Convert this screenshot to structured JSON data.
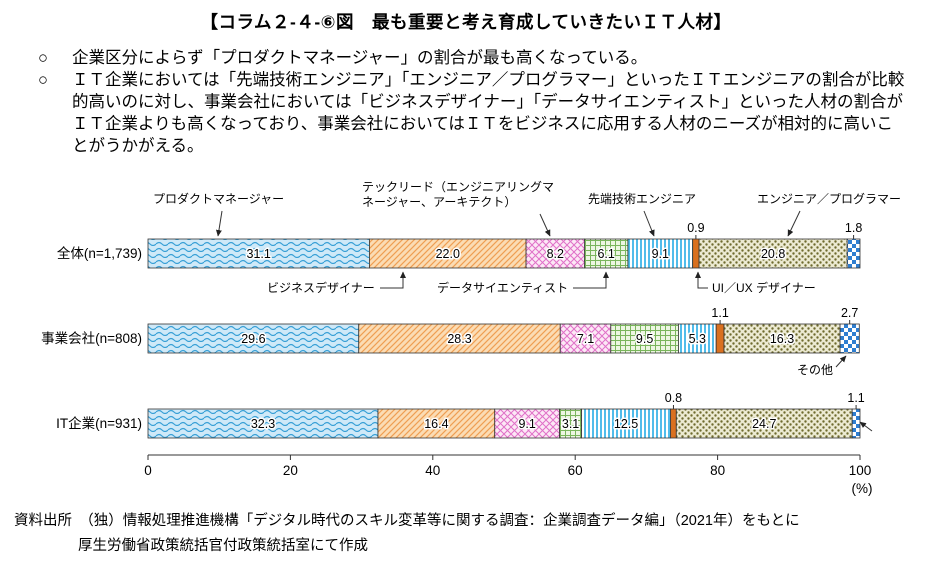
{
  "title": "【コラム２-４-⑥図　最も重要と考え育成していきたいＩＴ人材】",
  "bullet_marker": "○",
  "bullets": [
    "企業区分によらず「プロダクトマネージャー」の割合が最も高くなっている。",
    "ＩＴ企業においては「先端技術エンジニア」「エンジニア／プログラマー」といったＩＴエンジニアの割合が比較的高いのに対し、事業会社においては「ビジネスデザイナー」「データサイエンティスト」といった人材の割合がＩＴ企業よりも高くなっており、事業会社においてはＩＴをビジネスに応用する人材のニーズが相対的に高いことがうかがえる。"
  ],
  "chart_data": {
    "type": "bar",
    "stacked": true,
    "orientation": "horizontal",
    "unit": "%",
    "grid": false,
    "legend_position": "callout-labels",
    "categories": [
      "全体(n=1,739)",
      "事業会社(n=808)",
      "IT企業(n=931)"
    ],
    "series": [
      {
        "name": "プロダクトマネージャー",
        "pattern": "wave",
        "color": "#39a0d6",
        "bg": "#cfe9f8",
        "values": [
          31.1,
          29.6,
          32.3
        ]
      },
      {
        "name": "ビジネスデザイナー",
        "pattern": "diagonal",
        "color": "#ef9e52",
        "bg": "#fbdcb4",
        "values": [
          22.0,
          28.3,
          16.4
        ]
      },
      {
        "name": "テックリード（エンジニアリングマネージャー、アーキテクト）",
        "pattern": "crosshatch",
        "color": "#e070c8",
        "bg": "#fce8f5",
        "values": [
          8.2,
          7.1,
          9.1
        ]
      },
      {
        "name": "データサイエンティスト",
        "pattern": "grid",
        "color": "#7ab55c",
        "bg": "#edf6e2",
        "values": [
          6.1,
          9.5,
          3.1
        ]
      },
      {
        "name": "先端技術エンジニア",
        "pattern": "vertical",
        "color": "#3db5e8",
        "bg": "#ffffff",
        "values": [
          9.1,
          5.3,
          12.5
        ]
      },
      {
        "name": "UI／UX デザイナー",
        "pattern": "solid",
        "color": "#d9701f",
        "bg": "#d9701f",
        "values": [
          0.9,
          1.1,
          0.8
        ]
      },
      {
        "name": "エンジニア／プログラマー",
        "pattern": "dots",
        "color": "#6f6b2e",
        "bg": "#ecead2",
        "values": [
          20.8,
          16.3,
          24.7
        ]
      },
      {
        "name": "その他",
        "pattern": "check",
        "color": "#2f7ed0",
        "bg": "#ffffff",
        "values": [
          1.8,
          2.7,
          1.1
        ]
      }
    ],
    "x_axis": {
      "range": [
        0,
        100
      ],
      "ticks": [
        0,
        20,
        40,
        60,
        80,
        100
      ],
      "label": "(%)"
    }
  },
  "source": [
    "資料出所　（独）情報処理推進機構「デジタル時代のスキル変革等に関する調査：企業調査データ編」（2021年）をもとに",
    "厚生労働省政策統括官付政策統括室にて作成"
  ]
}
